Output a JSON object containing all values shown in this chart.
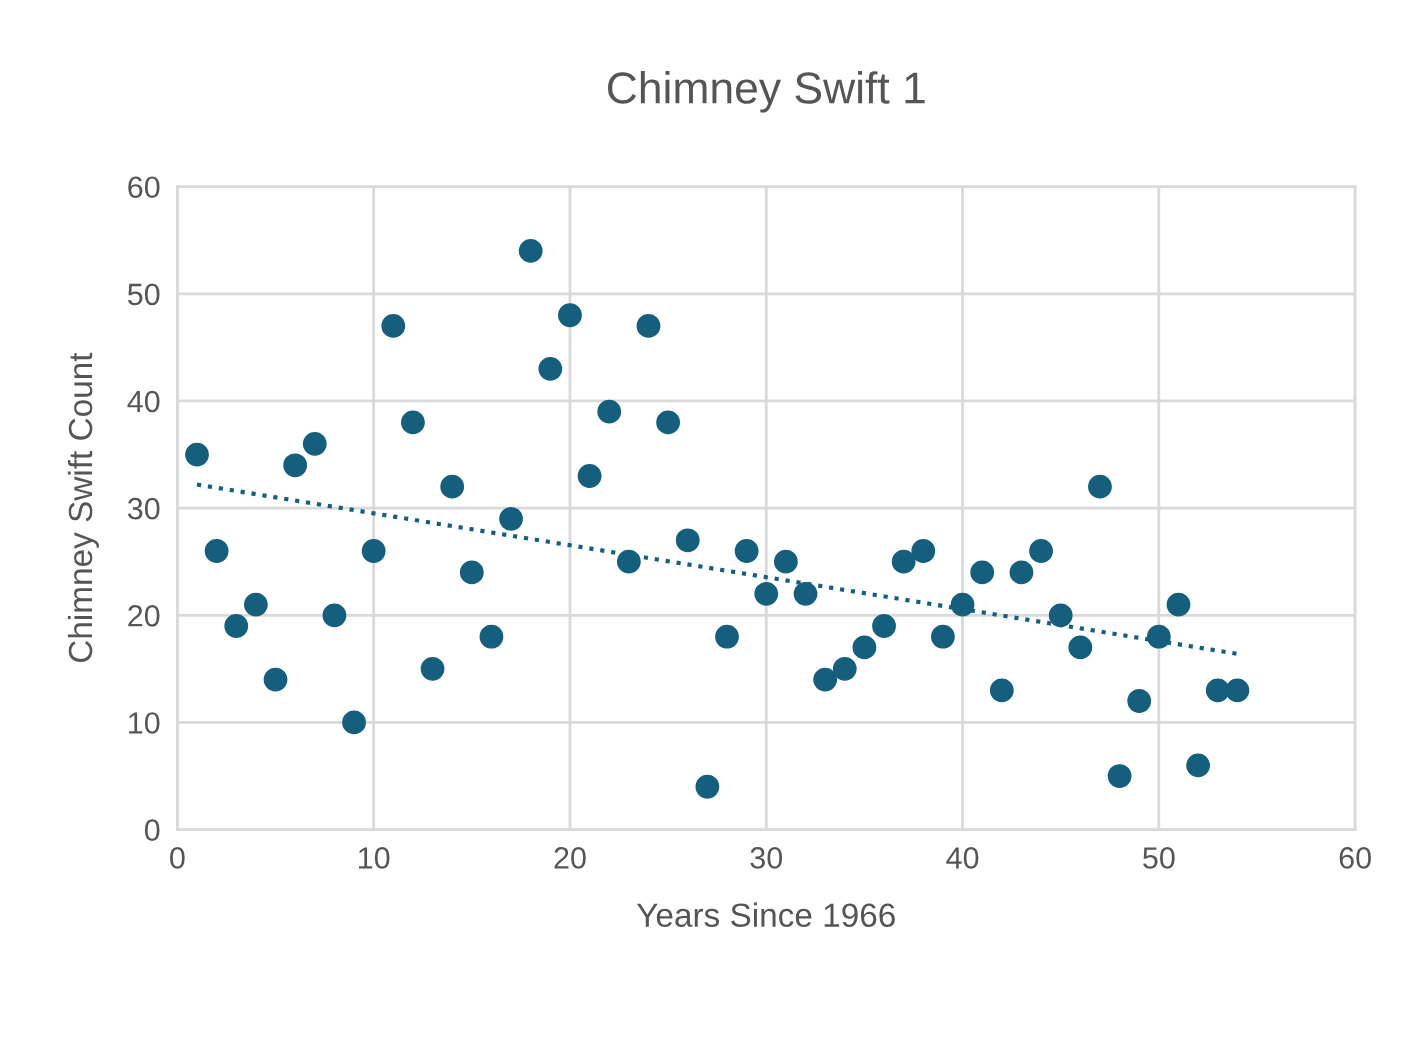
{
  "chart_data": {
    "type": "scatter",
    "title": "Chimney Swift 1",
    "xlabel": "Years Since 1966",
    "ylabel": "Chimney Swift Count",
    "xlim": [
      0,
      60
    ],
    "xticks": [
      0,
      10,
      20,
      30,
      40,
      50,
      60
    ],
    "ylim": [
      0,
      60
    ],
    "yticks": [
      0,
      10,
      20,
      30,
      40,
      50,
      60
    ],
    "grid": true,
    "marker": "circle",
    "series": [
      {
        "color": "#165f7c",
        "x": [
          1,
          2,
          3,
          4,
          5,
          6,
          7,
          8,
          9,
          10,
          11,
          12,
          13,
          14,
          15,
          16,
          17,
          18,
          19,
          20,
          21,
          22,
          23,
          24,
          25,
          26,
          27,
          28,
          29,
          30,
          31,
          32,
          33,
          34,
          35,
          36,
          37,
          38,
          39,
          40,
          41,
          42,
          43,
          44,
          45,
          46,
          47,
          48,
          49,
          50,
          51,
          52,
          53,
          54
        ],
        "values": [
          35,
          26,
          19,
          21,
          14,
          34,
          36,
          20,
          10,
          26,
          47,
          38,
          15,
          32,
          24,
          18,
          29,
          54,
          43,
          48,
          33,
          39,
          25,
          47,
          38,
          27,
          4,
          18,
          26,
          22,
          25,
          22,
          14,
          15,
          17,
          19,
          25,
          26,
          18,
          21,
          24,
          13,
          24,
          26,
          20,
          17,
          32,
          5,
          12,
          18,
          21,
          6,
          13,
          13
        ]
      },
      {
        "type": "line",
        "color": "#165f7c",
        "line_style": "dotted",
        "marker": "none",
        "x": [
          1,
          54
        ],
        "values": [
          32.2,
          16.4
        ]
      }
    ]
  }
}
